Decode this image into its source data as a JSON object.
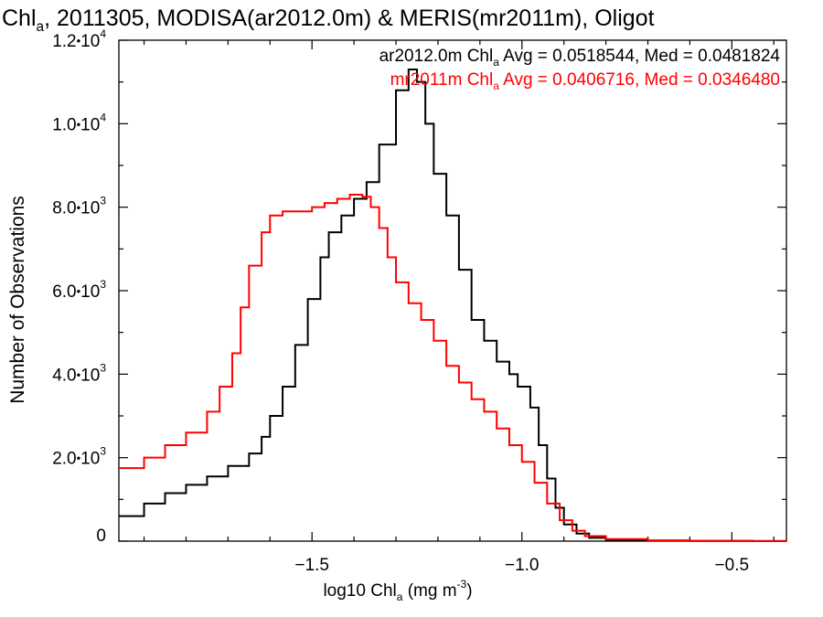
{
  "title_main": "Chl",
  "title_sub": "a",
  "title_rest": ", 2011305, MODISA(ar2012.0m) & MERIS(mr2011m), Oligot",
  "chart_data": {
    "type": "line",
    "xlabel": "log10 Chl",
    "xlabel_sub": "a",
    "xlabel_units": " (mg m",
    "xlabel_units_sup": "-3",
    "xlabel_units_end": ")",
    "ylabel": "Number of Observations",
    "xlim": [
      -1.96,
      -0.37
    ],
    "ylim": [
      0,
      12000
    ],
    "xticks": [
      {
        "v": -1.5,
        "label": "−1.5"
      },
      {
        "v": -1.0,
        "label": "−1.0"
      },
      {
        "v": -0.5,
        "label": "−0.5"
      }
    ],
    "yticks": [
      {
        "v": 0,
        "label": "0",
        "sci": false
      },
      {
        "v": 2000,
        "m": "2.0",
        "e": "3",
        "sci": true
      },
      {
        "v": 4000,
        "m": "4.0",
        "e": "3",
        "sci": true
      },
      {
        "v": 6000,
        "m": "6.0",
        "e": "3",
        "sci": true
      },
      {
        "v": 8000,
        "m": "8.0",
        "e": "3",
        "sci": true
      },
      {
        "v": 10000,
        "m": "1.0",
        "e": "4",
        "sci": true
      },
      {
        "v": 12000,
        "m": "1.2",
        "e": "4",
        "sci": true
      }
    ],
    "series": [
      {
        "name": "ar2012.0m",
        "color": "#000000",
        "legend_pre": "ar2012.0m Chl",
        "legend_sub": "a",
        "legend_post": " Avg = 0.0518544, Med = 0.0481824",
        "points": [
          [
            -1.96,
            600
          ],
          [
            -1.9,
            900
          ],
          [
            -1.85,
            1150
          ],
          [
            -1.8,
            1350
          ],
          [
            -1.75,
            1550
          ],
          [
            -1.7,
            1800
          ],
          [
            -1.65,
            2100
          ],
          [
            -1.62,
            2500
          ],
          [
            -1.6,
            3000
          ],
          [
            -1.57,
            3700
          ],
          [
            -1.54,
            4700
          ],
          [
            -1.51,
            5800
          ],
          [
            -1.48,
            6800
          ],
          [
            -1.46,
            7400
          ],
          [
            -1.43,
            7800
          ],
          [
            -1.4,
            8200
          ],
          [
            -1.37,
            8600
          ],
          [
            -1.34,
            9500
          ],
          [
            -1.3,
            10800
          ],
          [
            -1.27,
            11300
          ],
          [
            -1.25,
            11000
          ],
          [
            -1.23,
            10000
          ],
          [
            -1.21,
            8800
          ],
          [
            -1.18,
            7800
          ],
          [
            -1.15,
            6500
          ],
          [
            -1.12,
            5300
          ],
          [
            -1.09,
            4800
          ],
          [
            -1.06,
            4300
          ],
          [
            -1.03,
            4000
          ],
          [
            -1.01,
            3700
          ],
          [
            -0.98,
            3200
          ],
          [
            -0.96,
            2300
          ],
          [
            -0.94,
            1500
          ],
          [
            -0.92,
            800
          ],
          [
            -0.9,
            400
          ],
          [
            -0.87,
            180
          ],
          [
            -0.84,
            80
          ],
          [
            -0.8,
            30
          ],
          [
            -0.7,
            10
          ],
          [
            -0.6,
            5
          ],
          [
            -0.45,
            2
          ],
          [
            -0.37,
            0
          ]
        ]
      },
      {
        "name": "mr2011m",
        "color": "#ff0000",
        "legend_pre": "mr2011m Chl",
        "legend_sub": "a",
        "legend_post": " Avg = 0.0406716, Med = 0.0346480",
        "points": [
          [
            -1.96,
            1750
          ],
          [
            -1.9,
            2000
          ],
          [
            -1.85,
            2300
          ],
          [
            -1.8,
            2600
          ],
          [
            -1.75,
            3100
          ],
          [
            -1.72,
            3700
          ],
          [
            -1.69,
            4500
          ],
          [
            -1.67,
            5600
          ],
          [
            -1.65,
            6600
          ],
          [
            -1.62,
            7400
          ],
          [
            -1.6,
            7800
          ],
          [
            -1.57,
            7900
          ],
          [
            -1.54,
            7900
          ],
          [
            -1.5,
            8000
          ],
          [
            -1.47,
            8100
          ],
          [
            -1.44,
            8200
          ],
          [
            -1.41,
            8300
          ],
          [
            -1.38,
            8250
          ],
          [
            -1.36,
            8000
          ],
          [
            -1.34,
            7500
          ],
          [
            -1.32,
            6800
          ],
          [
            -1.3,
            6200
          ],
          [
            -1.27,
            5700
          ],
          [
            -1.24,
            5300
          ],
          [
            -1.21,
            4800
          ],
          [
            -1.18,
            4200
          ],
          [
            -1.15,
            3800
          ],
          [
            -1.12,
            3400
          ],
          [
            -1.09,
            3100
          ],
          [
            -1.06,
            2700
          ],
          [
            -1.03,
            2300
          ],
          [
            -1.0,
            1900
          ],
          [
            -0.97,
            1400
          ],
          [
            -0.94,
            900
          ],
          [
            -0.91,
            500
          ],
          [
            -0.88,
            250
          ],
          [
            -0.85,
            120
          ],
          [
            -0.8,
            50
          ],
          [
            -0.7,
            20
          ],
          [
            -0.6,
            8
          ],
          [
            -0.45,
            2
          ],
          [
            -0.37,
            0
          ]
        ]
      }
    ]
  }
}
